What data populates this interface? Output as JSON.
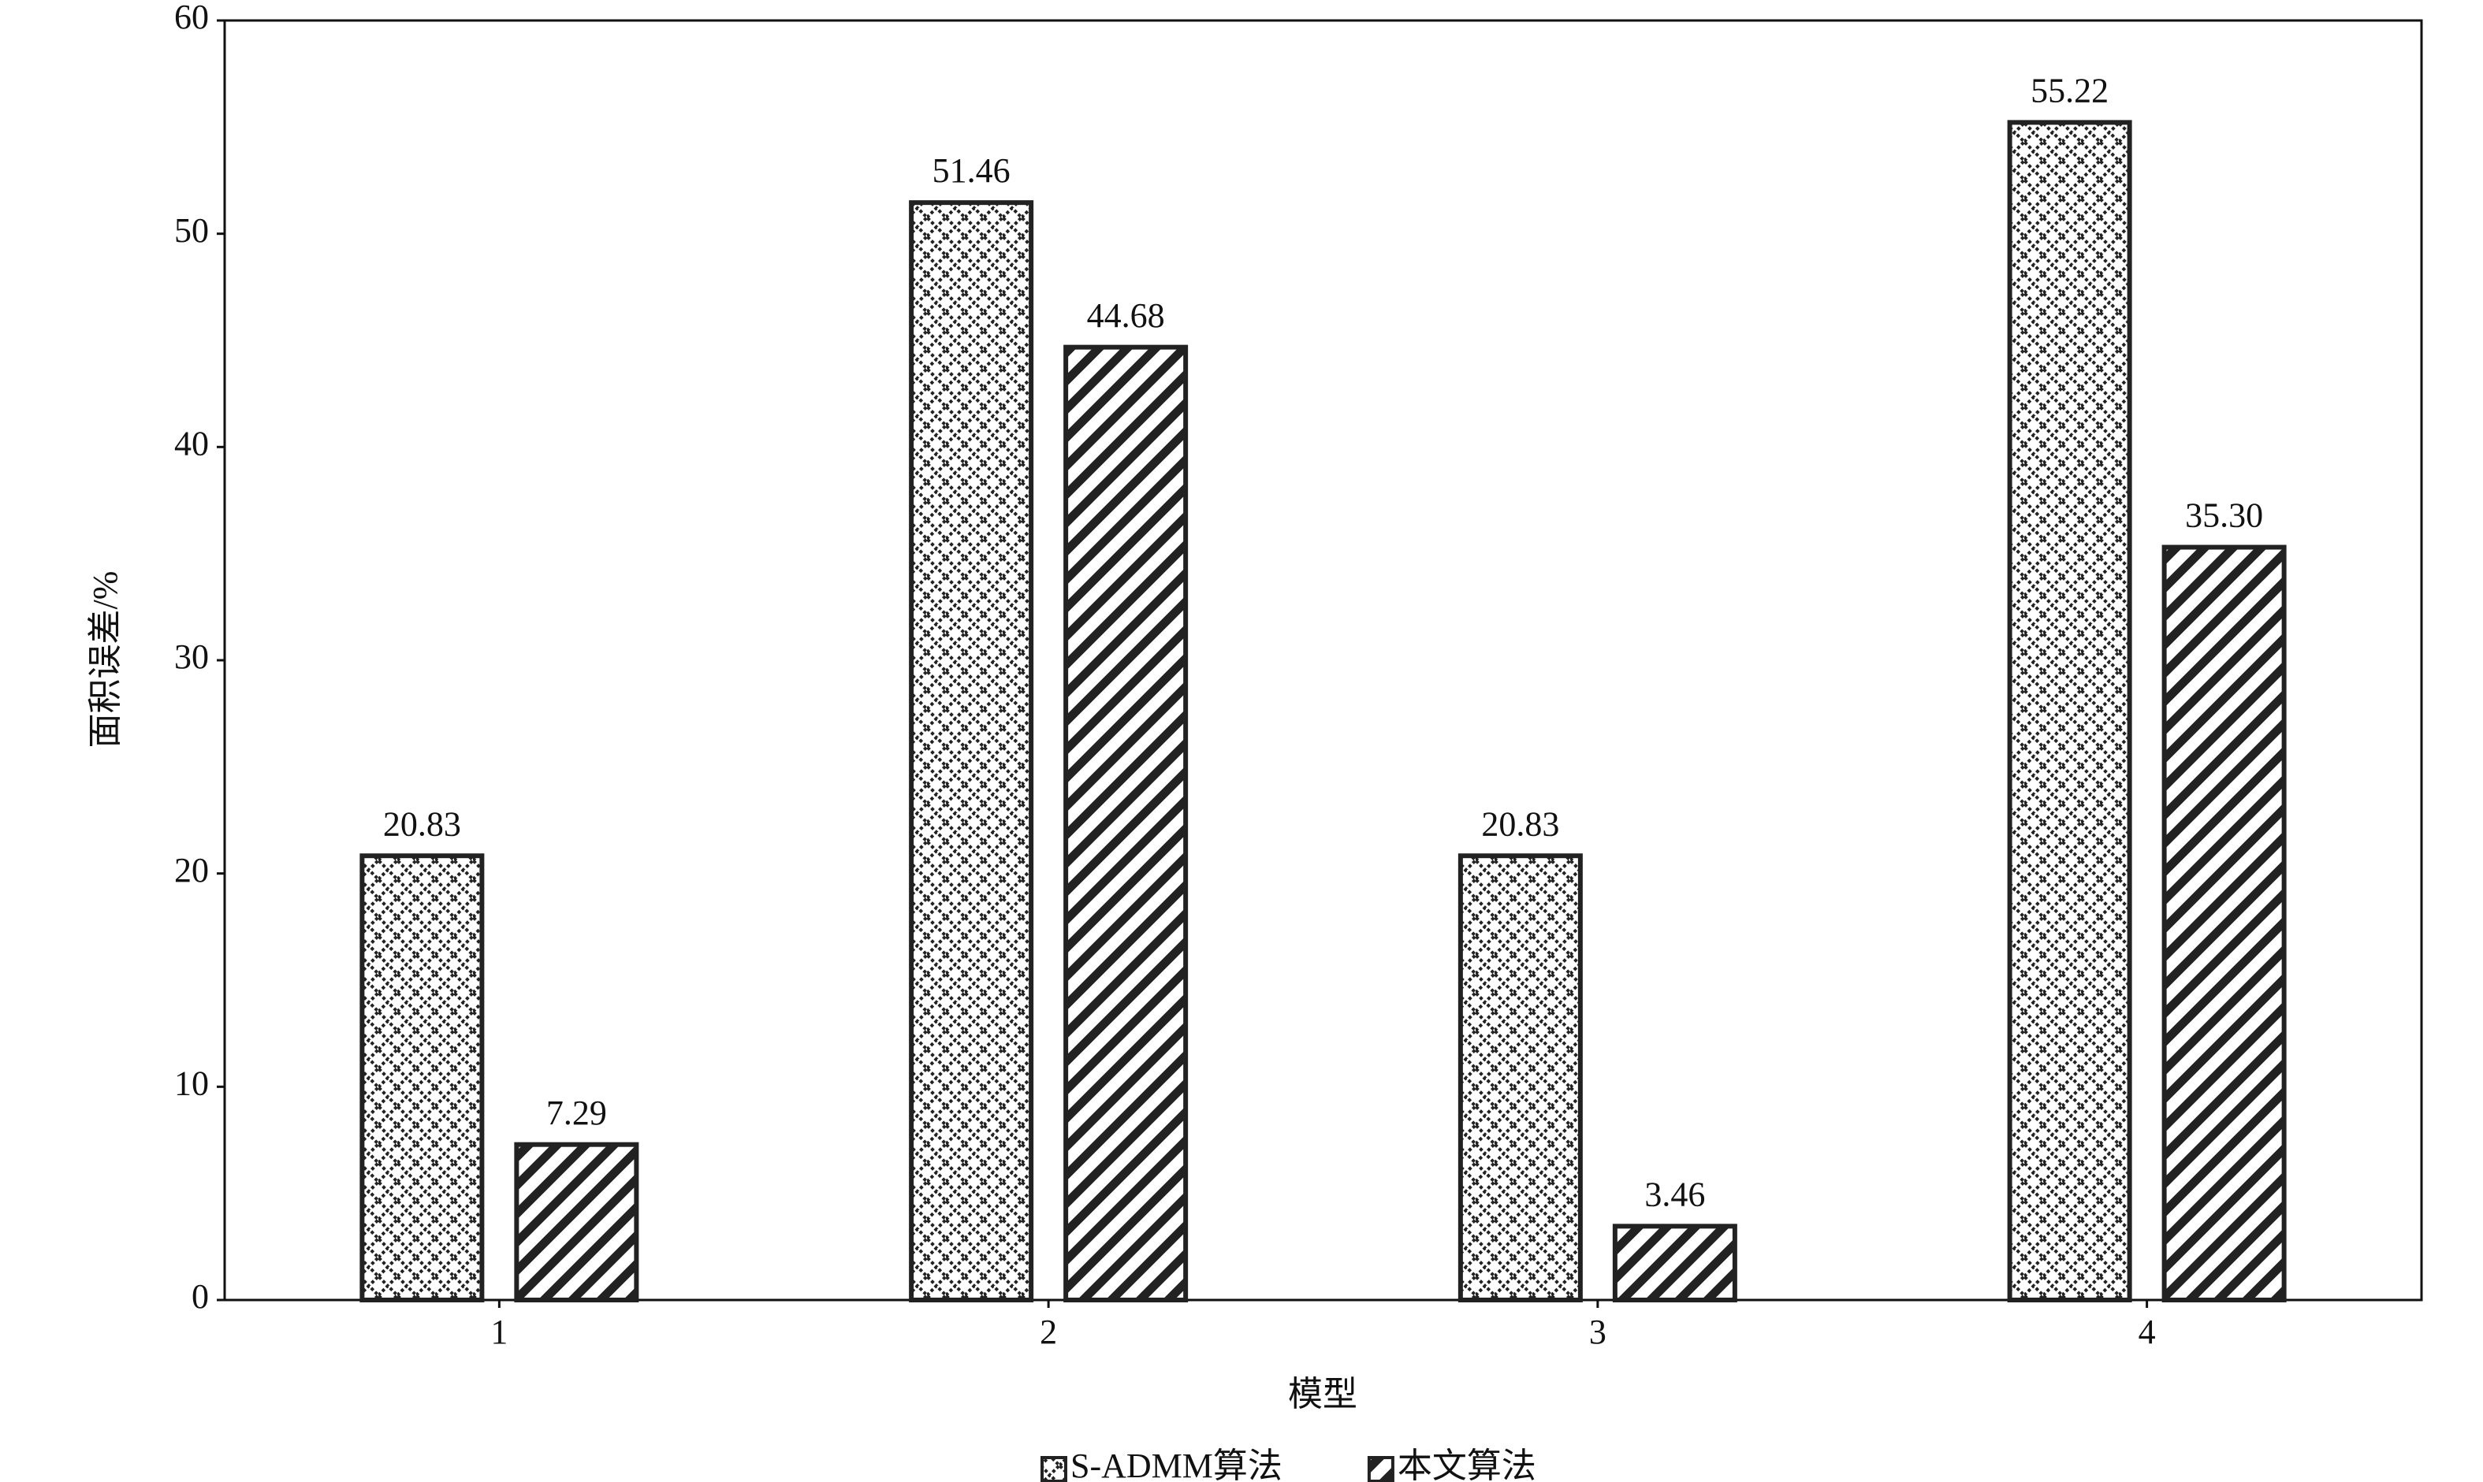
{
  "chart_data": {
    "type": "bar",
    "x_label": "模型",
    "y_label": "面积误差/%",
    "categories": [
      "1",
      "2",
      "3",
      "4"
    ],
    "series": [
      {
        "name": "S-ADMM算法",
        "color": "#222222",
        "pattern": "crosshatch",
        "values": [
          20.83,
          51.46,
          20.83,
          55.22
        ],
        "value_labels": [
          "20.83",
          "51.46",
          "20.83",
          "55.22"
        ]
      },
      {
        "name": "本文算法",
        "color": "#222222",
        "pattern": "diagonal",
        "values": [
          7.29,
          44.68,
          3.46,
          35.3
        ],
        "value_labels": [
          "7.29",
          "44.68",
          "3.46",
          "35.30"
        ]
      }
    ],
    "ylim": [
      0,
      60
    ],
    "yticks": [
      0,
      10,
      20,
      30,
      40,
      50,
      60
    ],
    "legend": "bottom"
  }
}
